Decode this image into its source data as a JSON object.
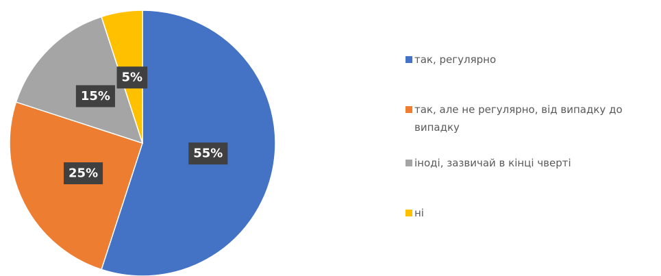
{
  "chart_data": {
    "type": "pie",
    "categories": [
      "так, регулярно",
      "так, але не регулярно, від випадку до випадку",
      "іноді, зазвичай в кінці чверті",
      "ні"
    ],
    "values": [
      55,
      25,
      15,
      5
    ],
    "value_labels": [
      "55%",
      "25%",
      "15%",
      "5%"
    ],
    "colors": [
      "#4472c4",
      "#ed7d31",
      "#a5a5a5",
      "#ffc000"
    ],
    "legend": "right"
  }
}
